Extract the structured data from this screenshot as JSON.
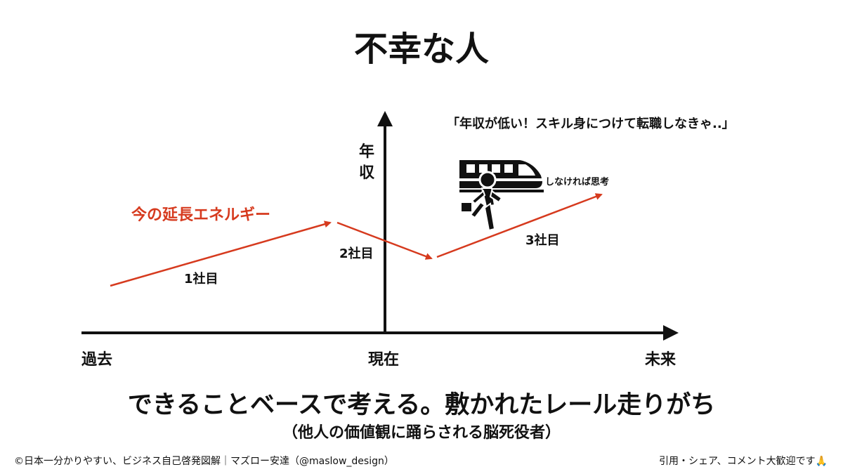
{
  "title": "不幸な人",
  "axes": {
    "y_label_line1": "年",
    "y_label_line2": "収",
    "x_past": "過去",
    "x_present": "現在",
    "x_future": "未来"
  },
  "energy_label": "今の延長エネルギー",
  "segments": {
    "first": "1社目",
    "second": "2社目",
    "third": "3社目"
  },
  "quote": "「年収が低い！スキル身につけて転職しなきゃ..」",
  "thinking": "しなければ思考",
  "main_message": "できることベースで考える。敷かれたレール走りがち",
  "sub_message": "（他人の価値観に踊らされる脳死役者）",
  "footer": {
    "left": "©日本一分かりやすい、ビジネス自己啓発図解｜マズロー安達（@maslow_design）",
    "right": "引用・シェア、コメント大歓迎です🙏"
  },
  "colors": {
    "arrow": "#d63a1e",
    "axis": "#111111"
  },
  "icons": {
    "runner": "running-person-icon",
    "train": "train-icon"
  }
}
